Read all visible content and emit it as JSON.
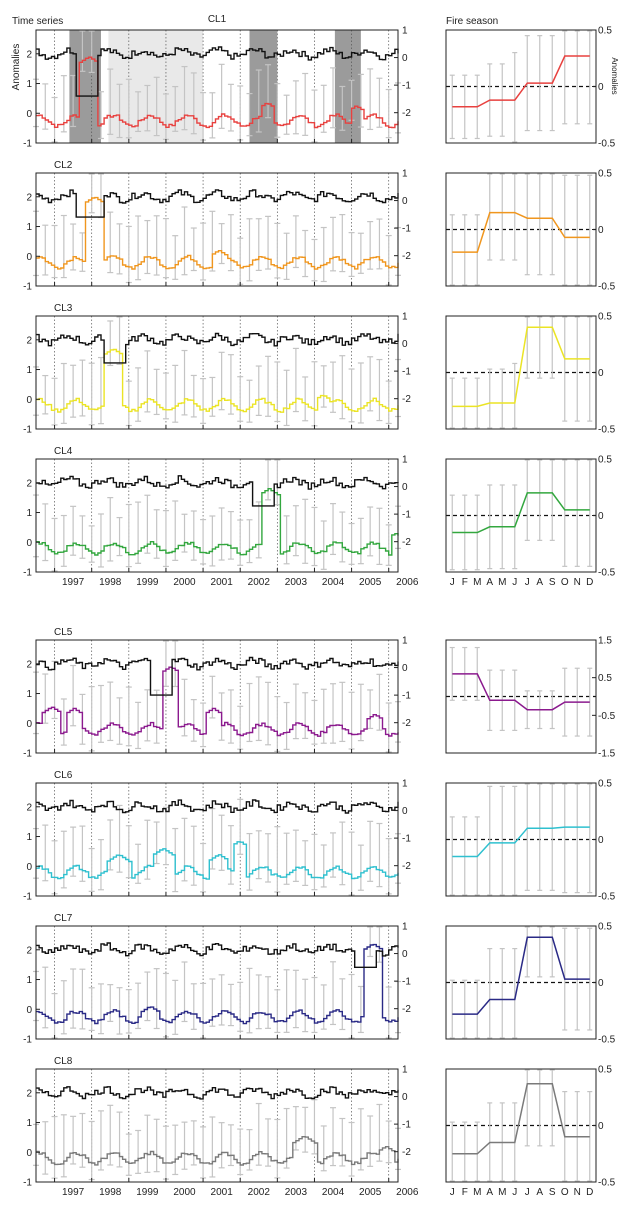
{
  "header": {
    "left": "Time series",
    "right": "Fire season"
  },
  "axis_labels": {
    "left": "Anomalies",
    "right": "Anomalies"
  },
  "colors": {
    "ts_black": "#111111",
    "error_bar": "#c4c4c4",
    "shade_dark": "#9b9b9b",
    "shade_light": "#e9e9e9",
    "dashed": "#111111"
  },
  "chart_data": {
    "type": "line",
    "x_year_ticks": [
      "1997",
      "1998",
      "1999",
      "2000",
      "2001",
      "2002",
      "2003",
      "2004",
      "2005",
      "2006"
    ],
    "month_ticks": [
      "J",
      "F",
      "M",
      "A",
      "M",
      "J",
      "J",
      "A",
      "S",
      "O",
      "N",
      "D"
    ],
    "ts_left_ticks": [
      "-1",
      "0",
      "1",
      "2"
    ],
    "ts_right_ticks": [
      "1",
      "0",
      "-1",
      "-2"
    ],
    "ts_left_ylim": [
      -1,
      2.8
    ],
    "ts_right_ylim": [
      -3.1,
      1
    ],
    "clusters": [
      {
        "name": "CL1",
        "name_centered": true,
        "color": "#e8413f",
        "seas_ylim": [
          -0.5,
          0.5
        ],
        "seas_ticks": [
          "0.5",
          "0",
          "-0.5"
        ],
        "seas_values": [
          -0.18,
          -0.18,
          -0.18,
          -0.12,
          -0.12,
          -0.12,
          0.03,
          0.03,
          0.03,
          0.27,
          0.27,
          0.27
        ],
        "seas_err": [
          0.28,
          0.28,
          0.28,
          0.32,
          0.32,
          0.42,
          0.42,
          0.42,
          0.42,
          0.6,
          0.6,
          0.6
        ],
        "shades": [
          {
            "from": 1997.4,
            "to": 1998.25,
            "tone": "dark"
          },
          {
            "from": 1998.45,
            "to": 2001.0,
            "tone": "light"
          },
          {
            "from": 2002.25,
            "to": 2003.0,
            "tone": "dark"
          },
          {
            "from": 2004.55,
            "to": 2005.25,
            "tone": "dark"
          }
        ],
        "ts_peaks": [
          {
            "t": 1997.9,
            "v": 1.9,
            "w": 0.25
          },
          {
            "t": 2002.7,
            "v": 0.35,
            "w": 0.18
          },
          {
            "t": 2005.1,
            "v": 0.25,
            "w": 0.15
          }
        ],
        "ts_base": -0.25,
        "black_dips": [
          {
            "t": 1997.85,
            "v": -1.4,
            "w": 0.3
          }
        ]
      },
      {
        "name": "CL2",
        "name_centered": false,
        "color": "#f0961e",
        "seas_ylim": [
          -0.5,
          0.5
        ],
        "seas_ticks": [
          "0.5",
          "0",
          "-0.5"
        ],
        "seas_values": [
          -0.2,
          -0.2,
          -0.2,
          0.15,
          0.15,
          0.15,
          0.1,
          0.1,
          0.1,
          -0.07,
          -0.07,
          -0.07
        ],
        "seas_err": [
          0.33,
          0.33,
          0.33,
          0.42,
          0.42,
          0.42,
          0.5,
          0.5,
          0.5,
          0.55,
          0.55,
          0.55
        ],
        "shades": [],
        "ts_peaks": [
          {
            "t": 1998.05,
            "v": 2.0,
            "w": 0.22
          },
          {
            "t": 2001.4,
            "v": 0.2,
            "w": 0.2
          }
        ],
        "ts_base": -0.2,
        "black_dips": [
          {
            "t": 1997.9,
            "v": -0.6,
            "w": 0.35
          }
        ]
      },
      {
        "name": "CL3",
        "name_centered": false,
        "color": "#ebe425",
        "seas_ylim": [
          -0.5,
          0.5
        ],
        "seas_ticks": [
          "0.5",
          "0",
          "-0.5"
        ],
        "seas_values": [
          -0.3,
          -0.3,
          -0.3,
          -0.27,
          -0.27,
          -0.27,
          0.4,
          0.4,
          0.4,
          0.12,
          0.12,
          0.12
        ],
        "seas_err": [
          0.25,
          0.25,
          0.25,
          0.3,
          0.3,
          0.35,
          0.45,
          0.45,
          0.45,
          0.55,
          0.55,
          0.55
        ],
        "shades": [],
        "ts_peaks": [
          {
            "t": 1998.55,
            "v": 1.7,
            "w": 0.25
          },
          {
            "t": 2004.2,
            "v": 0.15,
            "w": 0.2
          }
        ],
        "ts_base": -0.2,
        "black_dips": [
          {
            "t": 1998.6,
            "v": -0.7,
            "w": 0.3
          }
        ]
      },
      {
        "name": "CL4",
        "name_centered": false,
        "color": "#33a73f",
        "seas_ylim": [
          -0.5,
          0.5
        ],
        "seas_ticks": [
          "0.5",
          "0",
          "-0.5"
        ],
        "seas_values": [
          -0.15,
          -0.15,
          -0.15,
          -0.1,
          -0.1,
          -0.1,
          0.2,
          0.2,
          0.2,
          0.05,
          0.05,
          0.05
        ],
        "seas_err": [
          0.33,
          0.33,
          0.33,
          0.37,
          0.37,
          0.37,
          0.42,
          0.42,
          0.42,
          0.5,
          0.5,
          0.5
        ],
        "shades": [],
        "ts_peaks": [
          {
            "t": 2002.75,
            "v": 1.8,
            "w": 0.25
          },
          {
            "t": 2006.15,
            "v": 0.3,
            "w": 0.15
          }
        ],
        "ts_base": -0.2,
        "black_dips": [
          {
            "t": 2002.6,
            "v": -0.7,
            "w": 0.3
          }
        ]
      },
      {
        "name": "CL5",
        "name_centered": false,
        "color": "#8b1a8e",
        "seas_ylim": [
          -1.5,
          1.5
        ],
        "seas_ticks": [
          "1.5",
          "0.5",
          "-0.5",
          "-1.5"
        ],
        "seas_values": [
          0.6,
          0.6,
          0.6,
          -0.1,
          -0.1,
          -0.1,
          -0.35,
          -0.35,
          -0.35,
          -0.15,
          -0.15,
          -0.15
        ],
        "seas_err": [
          0.7,
          0.7,
          0.7,
          0.8,
          0.8,
          0.8,
          0.5,
          0.5,
          0.5,
          0.9,
          0.9,
          0.9
        ],
        "shades": [],
        "ts_peaks": [
          {
            "t": 1996.9,
            "v": 0.55,
            "w": 0.25
          },
          {
            "t": 1997.5,
            "v": 0.5,
            "w": 0.2
          },
          {
            "t": 2000.1,
            "v": 1.9,
            "w": 0.2
          },
          {
            "t": 2001.25,
            "v": 0.5,
            "w": 0.2
          },
          {
            "t": 2005.6,
            "v": 0.3,
            "w": 0.2
          }
        ],
        "ts_base": -0.2,
        "black_dips": [
          {
            "t": 1999.8,
            "v": -1.0,
            "w": 0.3
          }
        ]
      },
      {
        "name": "CL6",
        "name_centered": false,
        "color": "#2fc0cf",
        "seas_ylim": [
          -0.5,
          0.5
        ],
        "seas_ticks": [
          "0.5",
          "0",
          "-0.5"
        ],
        "seas_values": [
          -0.15,
          -0.15,
          -0.15,
          -0.03,
          -0.03,
          -0.03,
          0.1,
          0.1,
          0.1,
          0.11,
          0.11,
          0.11
        ],
        "seas_err": [
          0.35,
          0.35,
          0.35,
          0.5,
          0.5,
          0.5,
          0.55,
          0.55,
          0.55,
          0.58,
          0.58,
          0.58
        ],
        "shades": [],
        "ts_peaks": [
          {
            "t": 1998.7,
            "v": 0.4,
            "w": 0.3
          },
          {
            "t": 1999.9,
            "v": 0.6,
            "w": 0.3
          },
          {
            "t": 2001.4,
            "v": 0.4,
            "w": 0.25
          },
          {
            "t": 2001.95,
            "v": 0.85,
            "w": 0.2
          }
        ],
        "ts_base": -0.2,
        "black_dips": []
      },
      {
        "name": "CL7",
        "name_centered": false,
        "color": "#2a2a86",
        "seas_ylim": [
          -0.5,
          0.5
        ],
        "seas_ticks": [
          "0.5",
          "0",
          "-0.5"
        ],
        "seas_values": [
          -0.28,
          -0.28,
          -0.28,
          -0.15,
          -0.15,
          -0.15,
          0.4,
          0.4,
          0.4,
          0.03,
          0.03,
          0.03
        ],
        "seas_err": [
          0.3,
          0.3,
          0.3,
          0.45,
          0.45,
          0.45,
          0.35,
          0.35,
          0.35,
          0.45,
          0.45,
          0.45
        ],
        "shades": [],
        "ts_peaks": [
          {
            "t": 1999.55,
            "v": 0.1,
            "w": 0.25
          },
          {
            "t": 2005.55,
            "v": 2.2,
            "w": 0.22
          }
        ],
        "ts_base": -0.25,
        "black_dips": [
          {
            "t": 2005.3,
            "v": -0.5,
            "w": 0.3
          }
        ]
      },
      {
        "name": "CL8",
        "name_centered": false,
        "color": "#7a7a7a",
        "seas_ylim": [
          -0.5,
          0.5
        ],
        "seas_ticks": [
          "0.5",
          "0",
          "-0.5"
        ],
        "seas_values": [
          -0.25,
          -0.25,
          -0.25,
          -0.15,
          -0.15,
          -0.15,
          0.37,
          0.37,
          0.37,
          -0.1,
          -0.1,
          -0.1
        ],
        "seas_err": [
          0.28,
          0.28,
          0.28,
          0.35,
          0.35,
          0.35,
          0.55,
          0.55,
          0.55,
          0.4,
          0.4,
          0.4
        ],
        "shades": [],
        "ts_peaks": [
          {
            "t": 2003.7,
            "v": 0.55,
            "w": 0.3
          },
          {
            "t": 2005.9,
            "v": 0.2,
            "w": 0.2
          }
        ],
        "ts_base": -0.2,
        "black_dips": []
      }
    ]
  }
}
